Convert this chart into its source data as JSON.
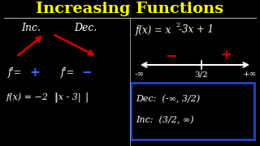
{
  "background_color": "#000000",
  "title_text": "Increasing Functions",
  "title_color": "#ffff00",
  "title_fontsize": 14,
  "separator_color": "#aaaaaa",
  "inc_label": "Inc.",
  "dec_label": "Dec.",
  "arrow_color": "#cc0000",
  "plus_color": "#4466ff",
  "minus_color": "#4466ff",
  "number_line_color": "#ffffff",
  "minus_sign_color": "#cc0000",
  "plus_sign_color": "#cc0000",
  "box_color": "#2244cc",
  "dec_interval": "Dec:  (-∞, 3/2)",
  "inc_interval": "Inc:  (3/2, ∞)",
  "text_color": "#ffffff"
}
